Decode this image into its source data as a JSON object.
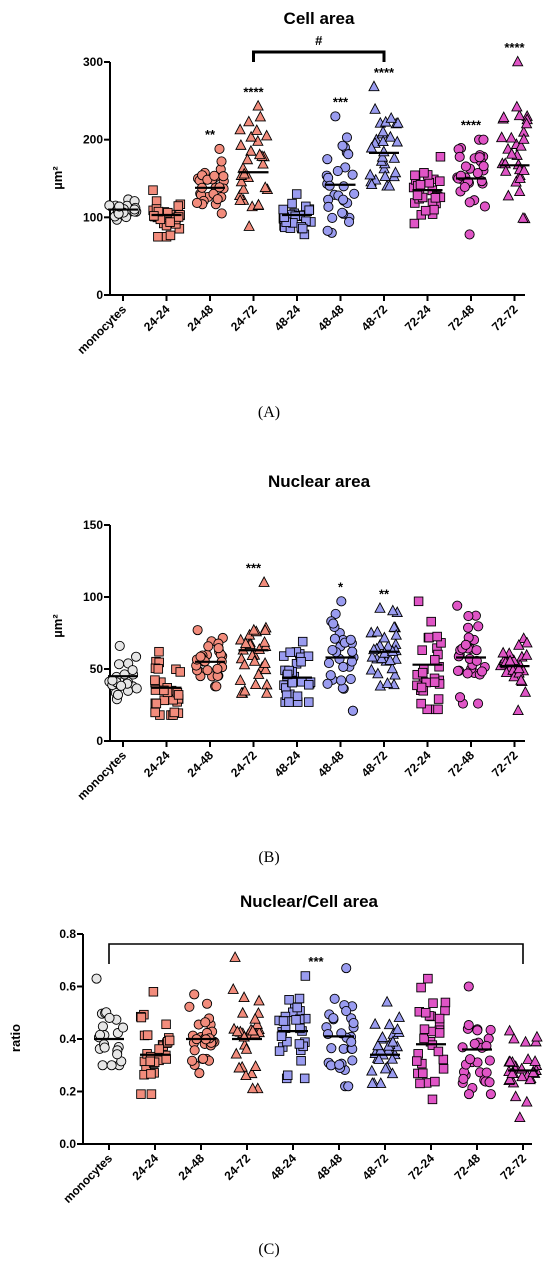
{
  "colors": {
    "monocytes": "#e6e6e6",
    "24": "#f28c7c",
    "48": "#9a9cf0",
    "72": "#e055c6",
    "mean_line": "#000000"
  },
  "chart_data": [
    {
      "type": "scatter",
      "panel_label": "(A)",
      "title": "Cell area",
      "ylabel": "µm²",
      "ylim": [
        0,
        300
      ],
      "yticks": [
        0,
        100,
        200,
        300
      ],
      "categories": [
        "monocytes",
        "24-24",
        "24-48",
        "24-72",
        "48-24",
        "48-48",
        "48-72",
        "72-24",
        "72-48",
        "72-72"
      ],
      "markers": [
        "circle",
        "square",
        "circle",
        "triangle",
        "square",
        "circle",
        "triangle",
        "square",
        "circle",
        "triangle"
      ],
      "groups": [
        "monocytes",
        "24",
        "24",
        "24",
        "48",
        "48",
        "48",
        "72",
        "72",
        "72"
      ],
      "means": [
        110,
        103,
        138,
        158,
        103,
        142,
        183,
        135,
        150,
        167
      ],
      "point_ranges": [
        [
          97,
          123
        ],
        [
          75,
          135
        ],
        [
          105,
          188
        ],
        [
          88,
          243
        ],
        [
          78,
          130
        ],
        [
          80,
          230
        ],
        [
          140,
          268
        ],
        [
          92,
          178
        ],
        [
          78,
          200
        ],
        [
          98,
          300
        ]
      ],
      "annotations": [
        "",
        "",
        "**",
        "****",
        "",
        "***",
        "****",
        "",
        "****",
        "****"
      ],
      "comparisons": [
        {
          "from": "24-72",
          "to": "48-72",
          "label": "#"
        }
      ]
    },
    {
      "type": "scatter",
      "panel_label": "(B)",
      "title": "Nuclear area",
      "ylabel": "µm²",
      "ylim": [
        0,
        150
      ],
      "yticks": [
        0,
        50,
        100,
        150
      ],
      "categories": [
        "monocytes",
        "24-24",
        "24-48",
        "24-72",
        "48-24",
        "48-48",
        "48-72",
        "72-24",
        "72-48",
        "72-72"
      ],
      "markers": [
        "circle",
        "square",
        "circle",
        "triangle",
        "square",
        "circle",
        "triangle",
        "square",
        "circle",
        "triangle"
      ],
      "groups": [
        "monocytes",
        "24",
        "24",
        "24",
        "48",
        "48",
        "48",
        "72",
        "72",
        "72"
      ],
      "means": [
        45,
        37,
        55,
        63,
        44,
        58,
        62,
        53,
        58,
        52
      ],
      "point_ranges": [
        [
          29,
          66
        ],
        [
          18,
          62
        ],
        [
          38,
          77
        ],
        [
          33,
          110
        ],
        [
          27,
          69
        ],
        [
          21,
          97
        ],
        [
          38,
          92
        ],
        [
          22,
          97
        ],
        [
          26,
          94
        ],
        [
          21,
          71
        ]
      ],
      "annotations": [
        "",
        "",
        "",
        "***",
        "",
        "*",
        "**",
        "",
        "",
        ""
      ],
      "comparisons": []
    },
    {
      "type": "scatter",
      "panel_label": "(C)",
      "title": "Nuclear/Cell area",
      "ylabel": "ratio",
      "ylim": [
        0.0,
        0.8
      ],
      "yticks": [
        0.0,
        0.2,
        0.4,
        0.6,
        0.8
      ],
      "categories": [
        "monocytes",
        "24-24",
        "24-48",
        "24-72",
        "48-24",
        "48-48",
        "48-72",
        "72-24",
        "72-48",
        "72-72"
      ],
      "markers": [
        "circle",
        "square",
        "circle",
        "triangle",
        "square",
        "circle",
        "triangle",
        "square",
        "circle",
        "triangle"
      ],
      "groups": [
        "monocytes",
        "24",
        "24",
        "24",
        "48",
        "48",
        "48",
        "72",
        "72",
        "72"
      ],
      "means": [
        0.4,
        0.34,
        0.4,
        0.4,
        0.43,
        0.41,
        0.34,
        0.38,
        0.36,
        0.28
      ],
      "point_ranges": [
        [
          0.3,
          0.63
        ],
        [
          0.19,
          0.58
        ],
        [
          0.27,
          0.57
        ],
        [
          0.21,
          0.71
        ],
        [
          0.25,
          0.64
        ],
        [
          0.22,
          0.67
        ],
        [
          0.23,
          0.54
        ],
        [
          0.17,
          0.63
        ],
        [
          0.19,
          0.6
        ],
        [
          0.1,
          0.43
        ]
      ],
      "annotations": [
        "",
        "",
        "",
        "",
        "",
        "",
        "",
        "",
        "",
        ""
      ],
      "comparisons": [
        {
          "from": "monocytes",
          "to": "72-72",
          "label": "***"
        }
      ]
    }
  ]
}
